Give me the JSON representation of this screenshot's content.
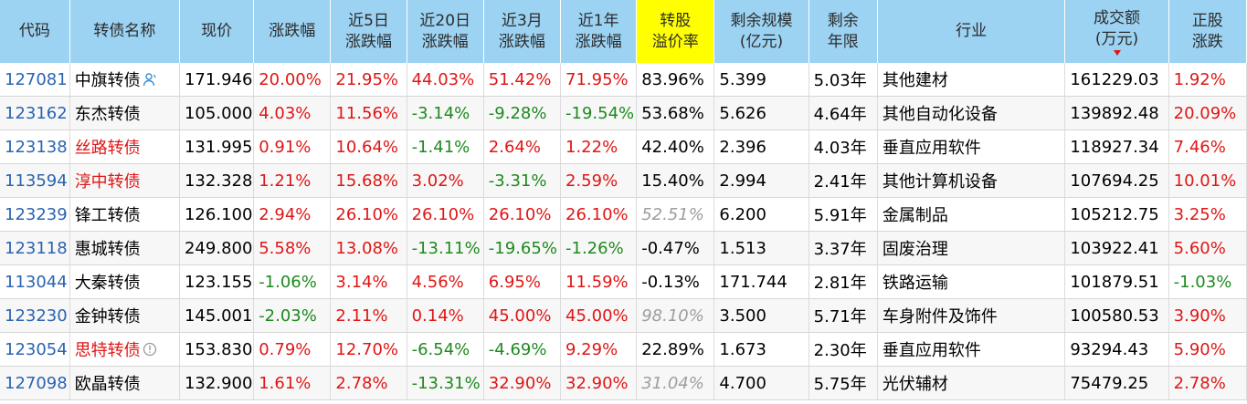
{
  "headers": [
    {
      "label": "代码"
    },
    {
      "label": "转债名称"
    },
    {
      "label": "现价"
    },
    {
      "label": "涨跌幅"
    },
    {
      "line1": "近5日",
      "line2": "涨跌幅"
    },
    {
      "line1": "近20日",
      "line2": "涨跌幅"
    },
    {
      "line1": "近3月",
      "line2": "涨跌幅"
    },
    {
      "line1": "近1年",
      "line2": "涨跌幅"
    },
    {
      "line1": "转股",
      "line2": "溢价率"
    },
    {
      "line1": "剩余规模",
      "line2": "(亿元)"
    },
    {
      "line1": "剩余",
      "line2": "年限"
    },
    {
      "label": "行业"
    },
    {
      "line1": "成交额",
      "line2": "(万元)"
    },
    {
      "line1": "正股",
      "line2": "涨跌"
    }
  ],
  "highlight_color": "#ffff00",
  "header_bg": "#9cd2f2",
  "up_color": "#e01616",
  "down_color": "#1e8a1e",
  "rows": [
    {
      "code": "127081",
      "name": "中旗转债",
      "name_icon": "person-icon",
      "price": "171.946",
      "chg": "20.00%",
      "chg5": "21.95%",
      "chg20": "44.03%",
      "chg3m": "51.42%",
      "chg1y": "71.95%",
      "premium": "83.96%",
      "scale": "5.399",
      "years": "5.03年",
      "industry": "其他建材",
      "turnover": "161229.03",
      "stock_chg": "1.92%"
    },
    {
      "code": "123162",
      "name": "东杰转债",
      "price": "105.000",
      "chg": "4.03%",
      "chg5": "11.56%",
      "chg20": "-3.14%",
      "chg3m": "-9.28%",
      "chg1y": "-19.54%",
      "premium": "53.68%",
      "scale": "5.626",
      "years": "4.64年",
      "industry": "其他自动化设备",
      "turnover": "139892.48",
      "stock_chg": "20.09%"
    },
    {
      "code": "123138",
      "name": "丝路转债",
      "name_red": true,
      "price": "131.995",
      "chg": "0.91%",
      "chg5": "10.64%",
      "chg20": "-1.41%",
      "chg3m": "2.64%",
      "chg1y": "1.22%",
      "premium": "42.40%",
      "scale": "2.396",
      "years": "4.03年",
      "industry": "垂直应用软件",
      "turnover": "118927.34",
      "stock_chg": "7.46%"
    },
    {
      "code": "113594",
      "name": "淳中转债",
      "name_red": true,
      "price": "132.328",
      "chg": "1.21%",
      "chg5": "15.68%",
      "chg20": "3.02%",
      "chg3m": "-3.31%",
      "chg1y": "2.59%",
      "premium": "15.40%",
      "scale": "2.994",
      "years": "2.41年",
      "industry": "其他计算机设备",
      "turnover": "107694.25",
      "stock_chg": "10.01%"
    },
    {
      "code": "123239",
      "name": "锋工转债",
      "price": "126.100",
      "chg": "2.94%",
      "chg5": "26.10%",
      "chg20": "26.10%",
      "chg3m": "26.10%",
      "chg1y": "26.10%",
      "premium": "52.51%",
      "premium_gray": true,
      "scale": "6.200",
      "years": "5.91年",
      "industry": "金属制品",
      "turnover": "105212.75",
      "stock_chg": "3.25%"
    },
    {
      "code": "123118",
      "name": "惠城转债",
      "price": "249.800",
      "chg": "5.58%",
      "chg5": "13.08%",
      "chg20": "-13.11%",
      "chg3m": "-19.65%",
      "chg1y": "-1.26%",
      "premium": "-0.47%",
      "scale": "1.513",
      "years": "3.37年",
      "industry": "固废治理",
      "turnover": "103922.41",
      "stock_chg": "5.60%"
    },
    {
      "code": "113044",
      "name": "大秦转债",
      "price": "123.155",
      "chg": "-1.06%",
      "chg5": "3.14%",
      "chg20": "4.56%",
      "chg3m": "6.95%",
      "chg1y": "11.59%",
      "premium": "-0.13%",
      "scale": "171.744",
      "years": "2.81年",
      "industry": "铁路运输",
      "turnover": "101879.51",
      "stock_chg": "-1.03%"
    },
    {
      "code": "123230",
      "name": "金钟转债",
      "price": "145.001",
      "chg": "-2.03%",
      "chg5": "2.11%",
      "chg20": "0.14%",
      "chg3m": "45.00%",
      "chg1y": "45.00%",
      "premium": "98.10%",
      "premium_gray": true,
      "scale": "3.500",
      "years": "5.71年",
      "industry": "车身附件及饰件",
      "turnover": "100580.53",
      "stock_chg": "3.90%"
    },
    {
      "code": "123054",
      "name": "思特转债",
      "name_red": true,
      "name_icon": "warning-circle-icon",
      "price": "153.830",
      "chg": "0.79%",
      "chg5": "12.70%",
      "chg20": "-6.54%",
      "chg3m": "-4.69%",
      "chg1y": "9.29%",
      "premium": "22.89%",
      "scale": "1.673",
      "years": "2.30年",
      "industry": "垂直应用软件",
      "turnover": "93294.43",
      "stock_chg": "5.90%"
    },
    {
      "code": "127098",
      "name": "欧晶转债",
      "price": "132.900",
      "chg": "1.61%",
      "chg5": "2.78%",
      "chg20": "-13.31%",
      "chg3m": "32.90%",
      "chg1y": "32.90%",
      "premium": "31.04%",
      "premium_gray": true,
      "scale": "4.700",
      "years": "5.75年",
      "industry": "光伏辅材",
      "turnover": "75479.25",
      "stock_chg": "2.78%"
    }
  ]
}
